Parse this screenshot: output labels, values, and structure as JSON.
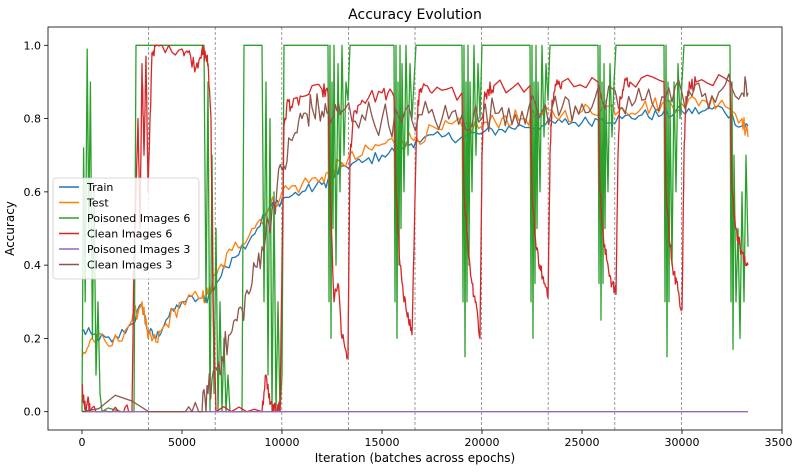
{
  "chart_data": {
    "type": "line",
    "title": "Accuracy Evolution",
    "xlabel": "Iteration (batches across epochs)",
    "ylabel": "Accuracy",
    "xlim": [
      -1700,
      35000
    ],
    "ylim": [
      -0.05,
      1.05
    ],
    "xticks": [
      0,
      5000,
      10000,
      15000,
      20000,
      25000,
      30000,
      35000
    ],
    "xtick_labels": [
      "0",
      "5000",
      "10000",
      "15000",
      "20000",
      "25000",
      "30000",
      "35000"
    ],
    "yticks": [
      0.0,
      0.2,
      0.4,
      0.6,
      0.8,
      1.0
    ],
    "ytick_labels": [
      "0.0",
      "0.2",
      "0.4",
      "0.6",
      "0.8",
      "1.0"
    ],
    "epoch_boundaries": [
      3330,
      6660,
      9990,
      13320,
      16650,
      19980,
      23310,
      26640,
      29970
    ],
    "legend_position": "center-left",
    "series": [
      {
        "name": "Train",
        "color": "#1f77b4",
        "noise": 0.004,
        "x": [
          0,
          500,
          1500,
          2500,
          3000,
          3300,
          3700,
          4200,
          5000,
          6000,
          6300,
          6700,
          7500,
          8500,
          9300,
          10000,
          11000,
          12000,
          12600,
          13000,
          14000,
          15000,
          16000,
          16700,
          18000,
          19000,
          20000,
          21000,
          22000,
          23000,
          24000,
          25000,
          26000,
          27000,
          28000,
          29000,
          30000,
          31000,
          32000,
          33000,
          33300
        ],
        "values": [
          0.22,
          0.21,
          0.19,
          0.24,
          0.29,
          0.22,
          0.2,
          0.25,
          0.3,
          0.31,
          0.31,
          0.35,
          0.42,
          0.48,
          0.55,
          0.58,
          0.6,
          0.62,
          0.64,
          0.67,
          0.68,
          0.7,
          0.72,
          0.74,
          0.75,
          0.75,
          0.76,
          0.77,
          0.78,
          0.78,
          0.79,
          0.79,
          0.8,
          0.8,
          0.81,
          0.81,
          0.82,
          0.82,
          0.83,
          0.78,
          0.78
        ]
      },
      {
        "name": "Test",
        "color": "#ff7f0e",
        "noise": 0.006,
        "x": [
          0,
          500,
          1500,
          2500,
          3000,
          3300,
          3700,
          4200,
          5000,
          6000,
          6300,
          6700,
          7500,
          8500,
          9300,
          10000,
          11000,
          12000,
          12600,
          13000,
          14000,
          15000,
          16000,
          16700,
          18000,
          19000,
          20000,
          21000,
          22000,
          23000,
          24000,
          25000,
          26000,
          27000,
          28000,
          29000,
          30000,
          31000,
          32000,
          33000,
          33300
        ],
        "values": [
          0.15,
          0.2,
          0.18,
          0.25,
          0.3,
          0.2,
          0.19,
          0.24,
          0.3,
          0.31,
          0.32,
          0.37,
          0.44,
          0.5,
          0.55,
          0.6,
          0.62,
          0.64,
          0.66,
          0.68,
          0.7,
          0.73,
          0.74,
          0.75,
          0.77,
          0.78,
          0.78,
          0.8,
          0.8,
          0.81,
          0.81,
          0.82,
          0.83,
          0.83,
          0.83,
          0.84,
          0.84,
          0.85,
          0.85,
          0.8,
          0.75
        ]
      },
      {
        "name": "Poisoned Images 6",
        "color": "#2ca02c",
        "noise": 0,
        "x": [
          0,
          80,
          160,
          260,
          340,
          420,
          520,
          600,
          700,
          800,
          900,
          1000,
          1300,
          2000,
          2600,
          2700,
          3000,
          6100,
          6200,
          6300,
          6400,
          6500,
          6600,
          6700,
          6800,
          6900,
          7000,
          7100,
          7200,
          7300,
          7400,
          7600,
          7800,
          8000,
          8100,
          9000,
          9100,
          9200,
          9300,
          9400,
          9500,
          9600,
          9700,
          9800,
          9900,
          10000,
          10100,
          12300,
          12350,
          12400,
          12450,
          12500,
          12550,
          12600,
          12700,
          12800,
          12900,
          13000,
          13100,
          13200,
          13300,
          13400,
          15600,
          15650,
          15700,
          15750,
          15800,
          15850,
          15900,
          15950,
          16000,
          16100,
          16200,
          16300,
          16400,
          16500,
          16600,
          16700,
          19000,
          19050,
          19100,
          19150,
          19200,
          19250,
          19300,
          19350,
          19400,
          19500,
          19600,
          19700,
          19800,
          19900,
          20000,
          22400,
          22450,
          22500,
          22550,
          22600,
          22650,
          22700,
          22750,
          22800,
          22900,
          23000,
          23100,
          23200,
          23300,
          23400,
          25800,
          25850,
          25900,
          25950,
          26000,
          26050,
          26100,
          26150,
          26200,
          26300,
          26400,
          26500,
          26600,
          26700,
          29100,
          29150,
          29200,
          29250,
          29300,
          29350,
          29400,
          29500,
          29600,
          29700,
          29800,
          29900,
          30000,
          30100,
          32400,
          32450,
          32500,
          32550,
          32600,
          32700,
          32800,
          32900,
          33000,
          33100,
          33200,
          33300
        ],
        "values": [
          0.0,
          0.72,
          0.3,
          0.99,
          0.5,
          0.9,
          0.2,
          0.6,
          0.1,
          0.3,
          0.05,
          0.0,
          0.01,
          0.0,
          0.0,
          1.0,
          1.0,
          1.0,
          0.3,
          0.9,
          0.0,
          0.7,
          0.05,
          0.5,
          0.0,
          0.3,
          0.0,
          0.2,
          0.0,
          0.1,
          0.0,
          0.0,
          0.0,
          0.0,
          1.0,
          1.0,
          0.3,
          0.9,
          0.1,
          0.8,
          0.0,
          0.6,
          0.0,
          0.3,
          0.0,
          0.1,
          1.0,
          1.0,
          0.3,
          1.0,
          0.2,
          0.9,
          0.5,
          1.0,
          0.4,
          0.95,
          0.6,
          1.0,
          0.7,
          0.9,
          0.85,
          1.0,
          1.0,
          0.3,
          1.0,
          0.2,
          0.9,
          0.4,
          1.0,
          0.5,
          0.95,
          0.6,
          1.0,
          0.7,
          0.95,
          0.8,
          0.9,
          1.0,
          1.0,
          0.3,
          1.0,
          0.15,
          0.9,
          0.3,
          1.0,
          0.4,
          0.9,
          0.6,
          1.0,
          0.7,
          0.95,
          0.8,
          1.0,
          1.0,
          0.3,
          1.0,
          0.2,
          0.9,
          0.35,
          1.0,
          0.5,
          0.9,
          0.6,
          1.0,
          0.75,
          0.95,
          0.85,
          1.0,
          1.0,
          0.35,
          1.0,
          0.25,
          0.9,
          0.35,
          0.95,
          0.5,
          0.85,
          0.6,
          0.95,
          0.75,
          0.9,
          1.0,
          1.0,
          0.3,
          1.0,
          0.15,
          0.9,
          0.3,
          0.85,
          0.4,
          0.9,
          0.6,
          0.95,
          0.8,
          0.9,
          1.0,
          1.0,
          0.3,
          0.9,
          0.17,
          0.7,
          0.3,
          0.5,
          0.2,
          0.6,
          0.3,
          0.7,
          0.45
        ]
      },
      {
        "name": "Clean Images 6",
        "color": "#d62728",
        "noise": 0.005,
        "x": [
          0,
          100,
          200,
          300,
          400,
          1000,
          2000,
          2500,
          2600,
          2800,
          2900,
          3000,
          3100,
          3200,
          3300,
          3500,
          3700,
          4000,
          5000,
          5300,
          5700,
          6000,
          6050,
          6200,
          6300,
          6450,
          6550,
          6700,
          9000,
          9200,
          9400,
          9600,
          9800,
          9900,
          10000,
          10100,
          10300,
          10500,
          11000,
          12000,
          12300,
          12400,
          12600,
          12800,
          13000,
          13300,
          13400,
          13600,
          14000,
          15000,
          15600,
          15700,
          15900,
          16100,
          16300,
          16500,
          16700,
          16800,
          17000,
          17500,
          19000,
          19100,
          19300,
          19500,
          19700,
          19900,
          20000,
          20100,
          20300,
          20600,
          22400,
          22500,
          22700,
          22900,
          23100,
          23300,
          23400,
          23500,
          23700,
          24000,
          25800,
          25900,
          26100,
          26300,
          26500,
          26700,
          26800,
          26900,
          27100,
          27400,
          29100,
          29200,
          29400,
          29600,
          29800,
          30000,
          30100,
          30200,
          30400,
          30700,
          32400,
          32500,
          32700,
          32900,
          33100,
          33300
        ],
        "values": [
          0.07,
          0.02,
          0.0,
          0.04,
          0.0,
          0.0,
          0.0,
          0.0,
          0.4,
          0.8,
          0.5,
          0.95,
          0.7,
          0.97,
          0.6,
          0.98,
          1.0,
          1.0,
          0.99,
          0.98,
          0.94,
          0.99,
          0.98,
          0.97,
          0.95,
          0.8,
          0.3,
          0.0,
          0.0,
          0.1,
          0.02,
          0.0,
          0.02,
          0.0,
          0.4,
          0.78,
          0.85,
          0.83,
          0.86,
          0.88,
          0.87,
          0.6,
          0.3,
          0.35,
          0.2,
          0.15,
          0.7,
          0.82,
          0.85,
          0.87,
          0.86,
          0.6,
          0.4,
          0.3,
          0.27,
          0.21,
          0.7,
          0.85,
          0.88,
          0.87,
          0.87,
          0.6,
          0.45,
          0.35,
          0.3,
          0.2,
          0.7,
          0.85,
          0.88,
          0.89,
          0.89,
          0.6,
          0.45,
          0.4,
          0.35,
          0.31,
          0.7,
          0.85,
          0.89,
          0.9,
          0.9,
          0.6,
          0.45,
          0.4,
          0.35,
          0.32,
          0.7,
          0.86,
          0.89,
          0.9,
          0.9,
          0.6,
          0.45,
          0.38,
          0.33,
          0.28,
          0.7,
          0.86,
          0.89,
          0.9,
          0.9,
          0.6,
          0.5,
          0.45,
          0.41,
          0.4
        ]
      },
      {
        "name": "Poisoned Images 3",
        "color": "#9467bd",
        "noise": 0,
        "x": [
          0,
          33300
        ],
        "values": [
          0.0,
          0.0
        ]
      },
      {
        "name": "Clean Images 3",
        "color": "#8c564b",
        "noise": 0.012,
        "x": [
          0,
          5000,
          6000,
          6300,
          6700,
          7000,
          7500,
          8000,
          8500,
          9000,
          9500,
          10000,
          10500,
          11000,
          11500,
          12000,
          12500,
          13000,
          14000,
          15000,
          16000,
          17000,
          18000,
          19000,
          20000,
          21000,
          22000,
          23000,
          24000,
          25000,
          26000,
          27000,
          28000,
          29000,
          30000,
          31000,
          32000,
          33000,
          33300
        ],
        "values": [
          0.0,
          0.0,
          0.0,
          0.05,
          0.12,
          0.15,
          0.22,
          0.28,
          0.35,
          0.45,
          0.55,
          0.66,
          0.74,
          0.8,
          0.83,
          0.82,
          0.8,
          0.82,
          0.81,
          0.8,
          0.79,
          0.81,
          0.8,
          0.81,
          0.8,
          0.83,
          0.82,
          0.82,
          0.83,
          0.84,
          0.85,
          0.83,
          0.85,
          0.86,
          0.87,
          0.86,
          0.88,
          0.87,
          0.87
        ]
      }
    ]
  }
}
